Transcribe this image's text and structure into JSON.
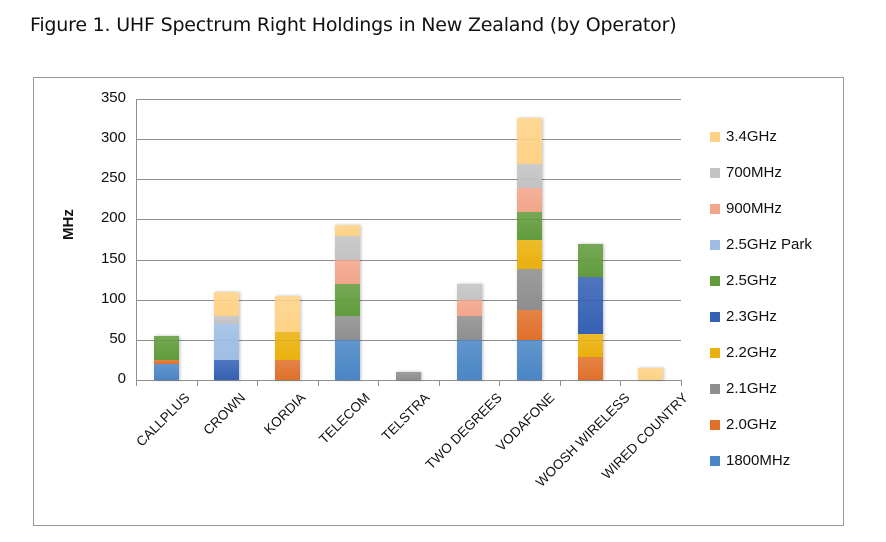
{
  "figure": {
    "title": "Figure 1. UHF Spectrum Right Holdings in New Zealand (by Operator)"
  },
  "chart_data": {
    "type": "bar",
    "stacked": true,
    "title": "Figure 1. UHF Spectrum Right Holdings in New Zealand (by Operator)",
    "xlabel": "",
    "ylabel": "MHz",
    "ylim": [
      0,
      350
    ],
    "yticks": [
      0,
      50,
      100,
      150,
      200,
      250,
      300,
      350
    ],
    "ytick_labels": [
      "0",
      "50",
      "100",
      "150",
      "200",
      "250",
      "300",
      "350"
    ],
    "grid": true,
    "legend_position": "right",
    "categories": [
      "CALLPLUS",
      "CROWN",
      "KORDIA",
      "TELECOM",
      "TELSTRA",
      "TWO DEGREES",
      "VODAFONE",
      "WOOSH WIRELESS",
      "WIRED COUNTRY"
    ],
    "series": [
      {
        "name": "1800MHz",
        "color": "#4a86c5",
        "values": [
          20,
          0,
          0,
          50,
          0,
          50,
          50,
          0,
          0
        ]
      },
      {
        "name": "2.0GHz",
        "color": "#e0702a",
        "values": [
          5,
          0,
          25,
          0,
          0,
          0,
          37,
          29,
          0
        ]
      },
      {
        "name": "2.1GHz",
        "color": "#8e8e8e",
        "values": [
          0,
          0,
          0,
          30,
          10,
          30,
          51,
          0,
          0
        ]
      },
      {
        "name": "2.2GHz",
        "color": "#eab10c",
        "values": [
          0,
          0,
          35,
          0,
          0,
          0,
          36,
          28,
          0
        ]
      },
      {
        "name": "2.3GHz",
        "color": "#3561b4",
        "values": [
          0,
          25,
          0,
          0,
          0,
          0,
          0,
          71,
          0
        ]
      },
      {
        "name": "2.5GHz",
        "color": "#619b3c",
        "values": [
          30,
          0,
          0,
          40,
          0,
          0,
          35,
          42,
          0
        ]
      },
      {
        "name": "2.5GHz Park",
        "color": "#9dbde4",
        "values": [
          0,
          45,
          0,
          0,
          0,
          0,
          0,
          0,
          0
        ]
      },
      {
        "name": "900MHz",
        "color": "#f2a58a",
        "values": [
          0,
          0,
          0,
          30,
          0,
          20,
          30,
          0,
          0
        ]
      },
      {
        "name": "700MHz",
        "color": "#c3c3c3",
        "values": [
          0,
          10,
          0,
          30,
          0,
          20,
          30,
          0,
          0
        ]
      },
      {
        "name": "3.4GHz",
        "color": "#fed286",
        "values": [
          0,
          30,
          45,
          13,
          0,
          0,
          57,
          0,
          15
        ]
      }
    ],
    "totals": [
      55,
      110,
      105,
      193,
      10,
      120,
      326,
      170,
      15
    ]
  },
  "legend": {
    "items": [
      {
        "label": "3.4GHz",
        "color": "#fed286"
      },
      {
        "label": "700MHz",
        "color": "#c3c3c3"
      },
      {
        "label": "900MHz",
        "color": "#f2a58a"
      },
      {
        "label": "2.5GHz Park",
        "color": "#9dbde4"
      },
      {
        "label": "2.5GHz",
        "color": "#619b3c"
      },
      {
        "label": "2.3GHz",
        "color": "#3561b4"
      },
      {
        "label": "2.2GHz",
        "color": "#eab10c"
      },
      {
        "label": "2.1GHz",
        "color": "#8e8e8e"
      },
      {
        "label": "2.0GHz",
        "color": "#e0702a"
      },
      {
        "label": "1800MHz",
        "color": "#4a86c5"
      }
    ]
  }
}
